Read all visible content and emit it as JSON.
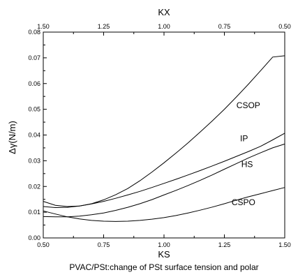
{
  "chart_data": {
    "type": "line",
    "xlabel": "KS",
    "x2label": "KX",
    "ylabel": "Δγ(N/m)",
    "caption": "PVAC/PSt:change of PSt surface tension and polar",
    "xlim": [
      0.5,
      1.5
    ],
    "ylim": [
      0.0,
      0.08
    ],
    "x_ticks": [
      "0.50",
      "0.75",
      "1.00",
      "1.25",
      "1.50"
    ],
    "x2_ticks": [
      "1.50",
      "1.25",
      "1.00",
      "0.75",
      "0.50"
    ],
    "y_ticks": [
      "0.00",
      "0.01",
      "0.02",
      "0.03",
      "0.04",
      "0.05",
      "0.06",
      "0.07",
      "0.08"
    ],
    "grid": false,
    "series": [
      {
        "name": "CSOP",
        "x": [
          0.5,
          0.55,
          0.6,
          0.65,
          0.7,
          0.75,
          0.8,
          0.85,
          0.9,
          0.95,
          1.0,
          1.05,
          1.1,
          1.15,
          1.2,
          1.25,
          1.3,
          1.35,
          1.4,
          1.45,
          1.5
        ],
        "y": [
          0.0142,
          0.0127,
          0.0122,
          0.0124,
          0.0133,
          0.0148,
          0.0168,
          0.0192,
          0.0222,
          0.0256,
          0.0292,
          0.033,
          0.037,
          0.0412,
          0.0455,
          0.05,
          0.0548,
          0.0598,
          0.065,
          0.0703,
          0.0708
        ]
      },
      {
        "name": "IP",
        "x": [
          0.5,
          0.55,
          0.6,
          0.65,
          0.7,
          0.75,
          0.8,
          0.85,
          0.9,
          0.95,
          1.0,
          1.05,
          1.1,
          1.15,
          1.2,
          1.25,
          1.3,
          1.35,
          1.4,
          1.45,
          1.5
        ],
        "y": [
          0.0122,
          0.0118,
          0.0119,
          0.0124,
          0.0132,
          0.0142,
          0.0154,
          0.0167,
          0.0181,
          0.0196,
          0.0212,
          0.0228,
          0.0245,
          0.0262,
          0.028,
          0.0298,
          0.0317,
          0.0336,
          0.0356,
          0.0381,
          0.0407
        ]
      },
      {
        "name": "HS",
        "x": [
          0.5,
          0.55,
          0.6,
          0.65,
          0.7,
          0.75,
          0.8,
          0.85,
          0.9,
          0.95,
          1.0,
          1.05,
          1.1,
          1.15,
          1.2,
          1.25,
          1.3,
          1.35,
          1.4,
          1.45,
          1.5
        ],
        "y": [
          0.0083,
          0.0082,
          0.0082,
          0.0085,
          0.009,
          0.0097,
          0.0107,
          0.0119,
          0.0133,
          0.0149,
          0.0167,
          0.0185,
          0.0204,
          0.0224,
          0.0245,
          0.0267,
          0.0289,
          0.0311,
          0.0331,
          0.035,
          0.0365
        ]
      },
      {
        "name": "CSPO",
        "x": [
          0.5,
          0.55,
          0.6,
          0.65,
          0.7,
          0.75,
          0.8,
          0.85,
          0.9,
          0.95,
          1.0,
          1.05,
          1.1,
          1.15,
          1.2,
          1.25,
          1.3,
          1.35,
          1.4,
          1.45,
          1.5
        ],
        "y": [
          0.0105,
          0.0093,
          0.0082,
          0.0074,
          0.0068,
          0.0065,
          0.0064,
          0.0065,
          0.0068,
          0.0073,
          0.0079,
          0.0087,
          0.0097,
          0.0108,
          0.012,
          0.0133,
          0.0147,
          0.016,
          0.0172,
          0.0184,
          0.0196
        ]
      }
    ]
  }
}
